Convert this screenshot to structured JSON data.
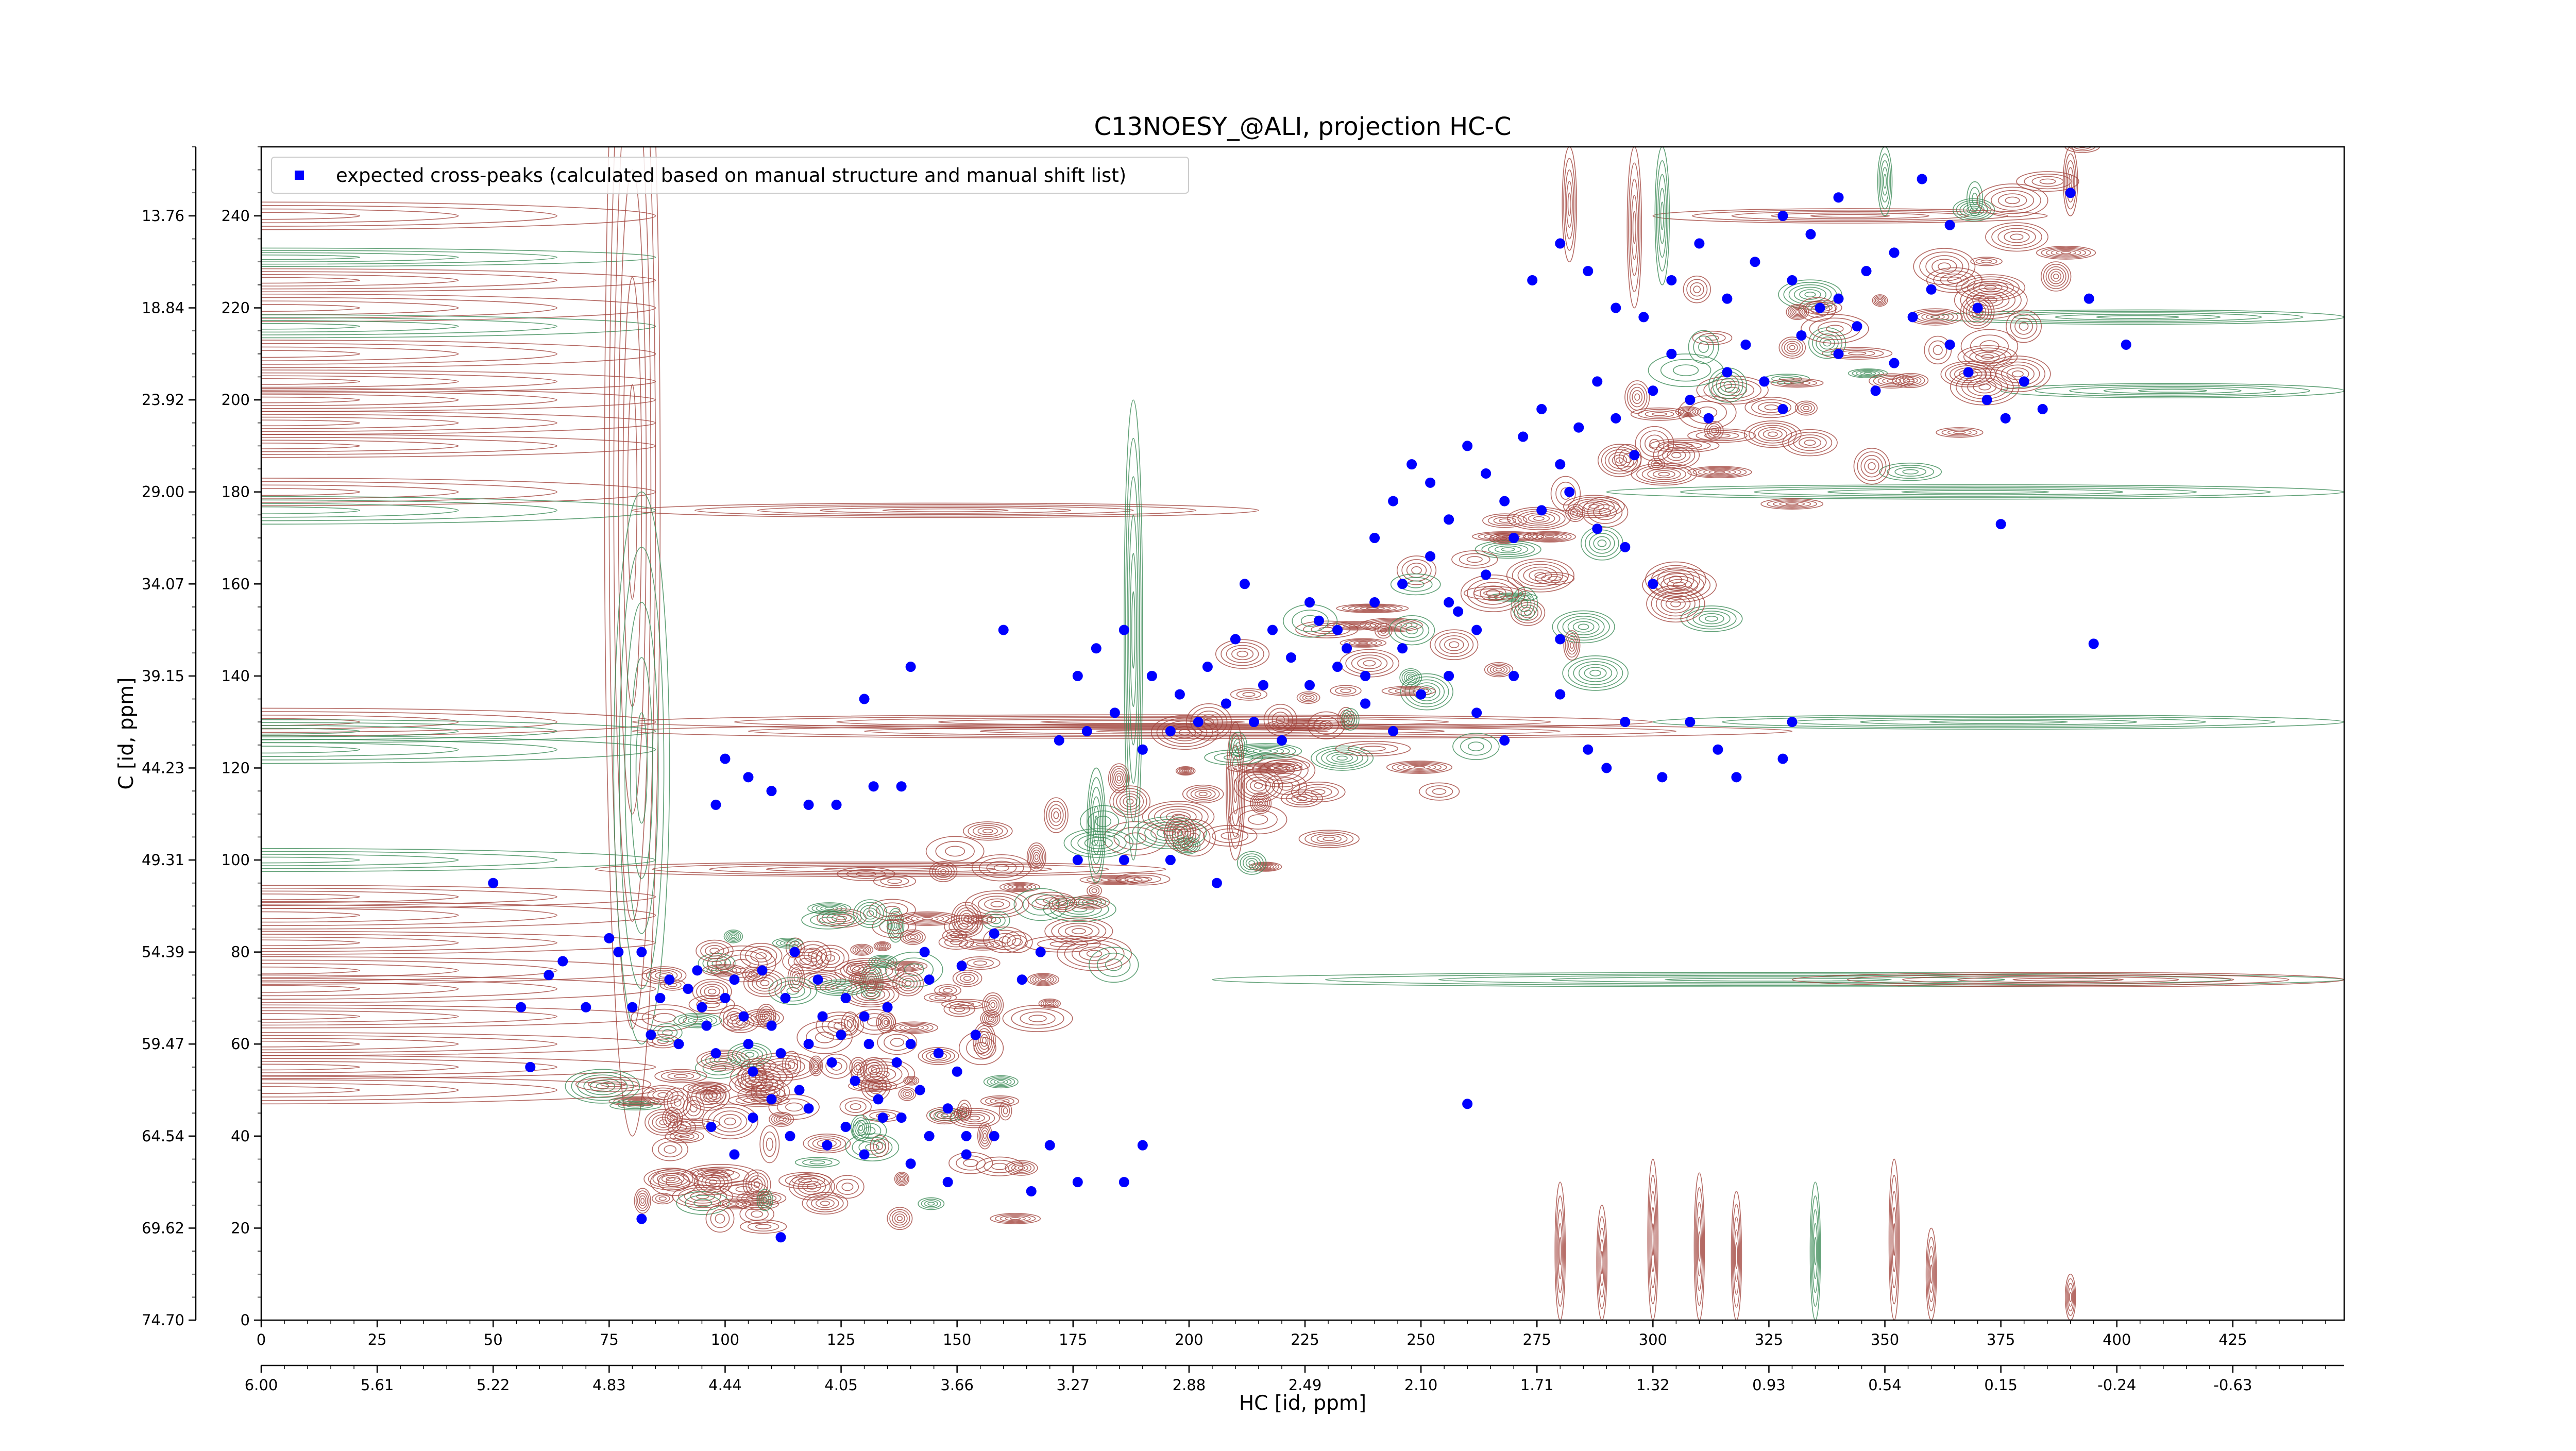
{
  "chart_data": {
    "type": "scatter",
    "title": "C13NOESY_@ALI, projection HC-C",
    "xlabel": "HC [id, ppm]",
    "ylabel": "C [id, ppm]",
    "grid": false,
    "legend_position": "top-left",
    "xlim": [
      0,
      449
    ],
    "ylim": [
      0,
      255
    ],
    "x_ticks": [
      0,
      25,
      50,
      75,
      100,
      125,
      150,
      175,
      200,
      225,
      250,
      275,
      300,
      325,
      350,
      375,
      400,
      425
    ],
    "y_ticks": [
      0,
      20,
      40,
      60,
      80,
      100,
      120,
      140,
      160,
      180,
      200,
      220,
      240
    ],
    "secondary_x_ticks": [
      "6.00",
      "5.61",
      "5.22",
      "4.83",
      "4.44",
      "4.05",
      "3.66",
      "3.27",
      "2.88",
      "2.49",
      "2.10",
      "1.71",
      "1.32",
      "0.93",
      "0.54",
      "0.15",
      "-0.24",
      "-0.63"
    ],
    "secondary_y_ticks": [
      "74.70",
      "69.62",
      "64.54",
      "59.47",
      "54.39",
      "49.31",
      "44.23",
      "39.15",
      "34.07",
      "29.00",
      "23.92",
      "18.84",
      "13.76"
    ],
    "series": [
      {
        "name": "expected cross-peaks (calculated based on manual structure and manual shift list)",
        "color": "#0000ff",
        "marker": "circle",
        "points": [
          [
            56,
            68
          ],
          [
            58,
            55
          ],
          [
            62,
            75
          ],
          [
            65,
            78
          ],
          [
            70,
            68
          ],
          [
            75,
            83
          ],
          [
            77,
            80
          ],
          [
            80,
            68
          ],
          [
            82,
            80
          ],
          [
            84,
            62
          ],
          [
            86,
            70
          ],
          [
            88,
            74
          ],
          [
            90,
            60
          ],
          [
            92,
            72
          ],
          [
            94,
            76
          ],
          [
            95,
            68
          ],
          [
            96,
            64
          ],
          [
            98,
            58
          ],
          [
            100,
            70
          ],
          [
            102,
            74
          ],
          [
            104,
            66
          ],
          [
            105,
            60
          ],
          [
            106,
            54
          ],
          [
            108,
            76
          ],
          [
            110,
            64
          ],
          [
            112,
            58
          ],
          [
            113,
            70
          ],
          [
            115,
            80
          ],
          [
            116,
            50
          ],
          [
            118,
            60
          ],
          [
            120,
            74
          ],
          [
            121,
            66
          ],
          [
            123,
            56
          ],
          [
            125,
            62
          ],
          [
            126,
            70
          ],
          [
            128,
            52
          ],
          [
            130,
            66
          ],
          [
            131,
            60
          ],
          [
            133,
            48
          ],
          [
            135,
            68
          ],
          [
            137,
            56
          ],
          [
            138,
            44
          ],
          [
            140,
            60
          ],
          [
            142,
            50
          ],
          [
            144,
            74
          ],
          [
            146,
            58
          ],
          [
            148,
            46
          ],
          [
            150,
            54
          ],
          [
            152,
            40
          ],
          [
            154,
            62
          ],
          [
            97,
            42
          ],
          [
            102,
            36
          ],
          [
            106,
            44
          ],
          [
            110,
            48
          ],
          [
            114,
            40
          ],
          [
            118,
            46
          ],
          [
            122,
            38
          ],
          [
            126,
            42
          ],
          [
            130,
            36
          ],
          [
            134,
            44
          ],
          [
            140,
            34
          ],
          [
            144,
            40
          ],
          [
            148,
            30
          ],
          [
            152,
            36
          ],
          [
            158,
            40
          ],
          [
            166,
            28
          ],
          [
            170,
            38
          ],
          [
            176,
            30
          ],
          [
            186,
            30
          ],
          [
            190,
            38
          ],
          [
            112,
            18
          ],
          [
            82,
            22
          ],
          [
            143,
            80
          ],
          [
            151,
            77
          ],
          [
            158,
            84
          ],
          [
            164,
            74
          ],
          [
            168,
            80
          ],
          [
            176,
            100
          ],
          [
            186,
            100
          ],
          [
            196,
            100
          ],
          [
            206,
            95
          ],
          [
            50,
            95
          ],
          [
            105,
            118
          ],
          [
            110,
            115
          ],
          [
            118,
            112
          ],
          [
            124,
            112
          ],
          [
            132,
            116
          ],
          [
            138,
            116
          ],
          [
            100,
            122
          ],
          [
            98,
            112
          ],
          [
            130,
            135
          ],
          [
            140,
            142
          ],
          [
            160,
            150
          ],
          [
            172,
            126
          ],
          [
            178,
            128
          ],
          [
            184,
            132
          ],
          [
            190,
            124
          ],
          [
            196,
            128
          ],
          [
            202,
            130
          ],
          [
            208,
            134
          ],
          [
            214,
            130
          ],
          [
            220,
            126
          ],
          [
            226,
            138
          ],
          [
            232,
            142
          ],
          [
            238,
            134
          ],
          [
            244,
            128
          ],
          [
            250,
            136
          ],
          [
            256,
            140
          ],
          [
            262,
            132
          ],
          [
            268,
            126
          ],
          [
            176,
            140
          ],
          [
            180,
            146
          ],
          [
            186,
            150
          ],
          [
            192,
            140
          ],
          [
            198,
            136
          ],
          [
            204,
            142
          ],
          [
            210,
            148
          ],
          [
            216,
            138
          ],
          [
            222,
            144
          ],
          [
            228,
            152
          ],
          [
            234,
            146
          ],
          [
            240,
            156
          ],
          [
            246,
            160
          ],
          [
            252,
            166
          ],
          [
            258,
            154
          ],
          [
            264,
            162
          ],
          [
            270,
            170
          ],
          [
            276,
            176
          ],
          [
            282,
            180
          ],
          [
            288,
            172
          ],
          [
            294,
            168
          ],
          [
            300,
            160
          ],
          [
            240,
            170
          ],
          [
            244,
            178
          ],
          [
            248,
            186
          ],
          [
            252,
            182
          ],
          [
            256,
            174
          ],
          [
            260,
            190
          ],
          [
            264,
            184
          ],
          [
            268,
            178
          ],
          [
            272,
            192
          ],
          [
            276,
            198
          ],
          [
            280,
            186
          ],
          [
            284,
            194
          ],
          [
            288,
            204
          ],
          [
            292,
            196
          ],
          [
            296,
            188
          ],
          [
            300,
            202
          ],
          [
            304,
            210
          ],
          [
            308,
            200
          ],
          [
            312,
            196
          ],
          [
            316,
            206
          ],
          [
            320,
            212
          ],
          [
            324,
            204
          ],
          [
            328,
            198
          ],
          [
            332,
            214
          ],
          [
            336,
            220
          ],
          [
            340,
            210
          ],
          [
            344,
            216
          ],
          [
            348,
            202
          ],
          [
            352,
            208
          ],
          [
            356,
            218
          ],
          [
            360,
            224
          ],
          [
            364,
            212
          ],
          [
            368,
            206
          ],
          [
            372,
            200
          ],
          [
            376,
            196
          ],
          [
            380,
            204
          ],
          [
            384,
            198
          ],
          [
            274,
            226
          ],
          [
            280,
            234
          ],
          [
            286,
            228
          ],
          [
            292,
            220
          ],
          [
            298,
            218
          ],
          [
            304,
            226
          ],
          [
            310,
            234
          ],
          [
            316,
            222
          ],
          [
            322,
            230
          ],
          [
            328,
            240
          ],
          [
            334,
            236
          ],
          [
            340,
            244
          ],
          [
            346,
            228
          ],
          [
            352,
            232
          ],
          [
            358,
            248
          ],
          [
            364,
            238
          ],
          [
            370,
            220
          ],
          [
            390,
            245
          ],
          [
            394,
            222
          ],
          [
            402,
            212
          ],
          [
            330,
            226
          ],
          [
            340,
            222
          ],
          [
            318,
            118
          ],
          [
            330,
            130
          ],
          [
            328,
            122
          ],
          [
            375,
            173
          ],
          [
            395,
            147
          ],
          [
            260,
            47
          ],
          [
            280,
            148
          ],
          [
            286,
            124
          ],
          [
            294,
            130
          ],
          [
            302,
            118
          ],
          [
            308,
            130
          ],
          [
            314,
            124
          ],
          [
            290,
            120
          ],
          [
            280,
            136
          ],
          [
            270,
            140
          ],
          [
            262,
            150
          ],
          [
            256,
            156
          ],
          [
            246,
            146
          ],
          [
            238,
            140
          ],
          [
            232,
            150
          ],
          [
            226,
            156
          ],
          [
            218,
            150
          ],
          [
            212,
            160
          ]
        ]
      }
    ],
    "contour_colors": {
      "positive": "#a1443c",
      "negative": "#3a8a55"
    }
  }
}
